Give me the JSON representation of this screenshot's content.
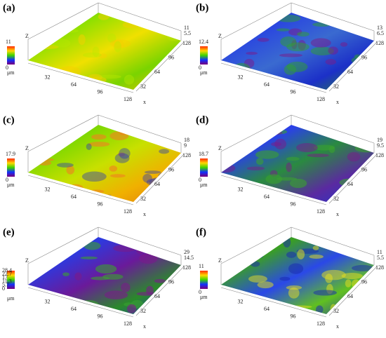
{
  "panels": [
    {
      "label": "(a)",
      "colorbar_labels": [
        "11",
        "0"
      ],
      "colorbar_unit": "μm",
      "z_axis_label": "Z",
      "z_ticks": [
        "11",
        "5.5"
      ],
      "y_ticks": [
        "128",
        "96",
        "64",
        "32"
      ],
      "x_ticks": [
        "32",
        "64",
        "96",
        "128"
      ],
      "x_axis_label": "x"
    },
    {
      "label": "(b)",
      "colorbar_labels": [
        "12.4",
        "0"
      ],
      "colorbar_unit": "μm",
      "z_axis_label": "Z",
      "z_ticks": [
        "13",
        "6.5"
      ],
      "y_ticks": [
        "128",
        "96",
        "64",
        "32"
      ],
      "x_ticks": [
        "32",
        "64",
        "96",
        "128"
      ],
      "x_axis_label": "x"
    },
    {
      "label": "(c)",
      "colorbar_labels": [
        "17.9",
        "0"
      ],
      "colorbar_unit": "μm",
      "z_axis_label": "Z",
      "z_ticks": [
        "18",
        "9"
      ],
      "y_ticks": [
        "128",
        "96",
        "64",
        "32"
      ],
      "x_ticks": [
        "32",
        "64",
        "96",
        "128"
      ],
      "x_axis_label": "x"
    },
    {
      "label": "(d)",
      "colorbar_labels": [
        "18.7",
        "0"
      ],
      "colorbar_unit": "μm",
      "z_axis_label": "Z",
      "z_ticks": [
        "19",
        "9.5"
      ],
      "y_ticks": [
        "128",
        "96",
        "64",
        "32"
      ],
      "x_ticks": [
        "32",
        "64",
        "96",
        "128"
      ],
      "x_axis_label": "x"
    },
    {
      "label": "(e)",
      "colorbar_labels": [
        "28.4",
        "22.7",
        "17",
        "11.3",
        "5.7",
        "0"
      ],
      "colorbar_unit": "μm",
      "z_axis_label": "Z",
      "z_ticks": [
        "29",
        "14.5"
      ],
      "y_ticks": [
        "128",
        "96",
        "64",
        "32"
      ],
      "x_ticks": [
        "32",
        "64",
        "96",
        "128"
      ],
      "x_axis_label": "x"
    },
    {
      "label": "(f)",
      "colorbar_labels": [
        "11",
        "0"
      ],
      "colorbar_unit": "μm",
      "z_axis_label": "Z",
      "z_ticks": [
        "11",
        "5.5"
      ],
      "y_ticks": [
        "128",
        "96",
        "64",
        "32"
      ],
      "x_ticks": [
        "32",
        "64",
        "96",
        "128"
      ],
      "x_axis_label": "x"
    }
  ]
}
